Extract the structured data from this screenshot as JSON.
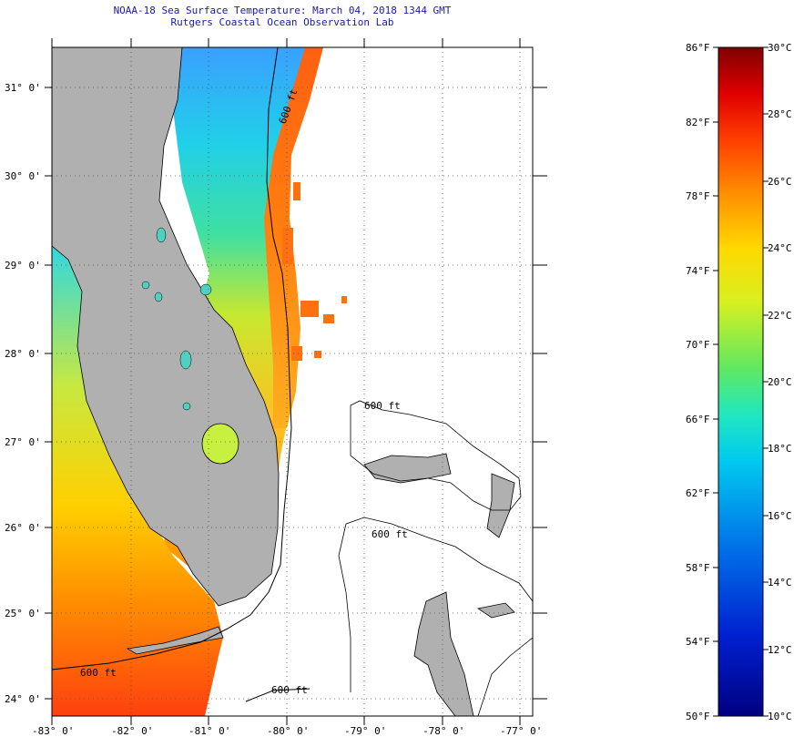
{
  "title": {
    "line1": "NOAA-18 Sea Surface Temperature:  March 04, 2018 1344 GMT",
    "line2": "Rutgers Coastal Ocean Observation Lab"
  },
  "map": {
    "lat_labels": [
      "31° 0'",
      "30° 0'",
      "29° 0'",
      "28° 0'",
      "27° 0'",
      "26° 0'",
      "25° 0'",
      "24° 0'"
    ],
    "lon_labels": [
      "-83° 0'",
      "-82° 0'",
      "-81° 0'",
      "-80° 0'",
      "-79° 0'",
      "-78° 0'",
      "-77° 0'"
    ],
    "contour_labels": [
      "600 ft",
      "600 ft",
      "600 ft",
      "600 ft",
      "600 ft"
    ]
  },
  "colorbar": {
    "fahrenheit_labels": [
      "86°F",
      "82°F",
      "78°F",
      "74°F",
      "70°F",
      "66°F",
      "62°F",
      "58°F",
      "54°F",
      "50°F"
    ],
    "celsius_labels": [
      "30°C",
      "28°C",
      "26°C",
      "24°C",
      "22°C",
      "20°C",
      "18°C",
      "16°C",
      "14°C",
      "12°C",
      "10°C"
    ]
  },
  "colors": {
    "land": "#b0b0b0",
    "title": "#1a1aa0",
    "scale_top": "#800000",
    "scale_bottom": "#000080"
  }
}
